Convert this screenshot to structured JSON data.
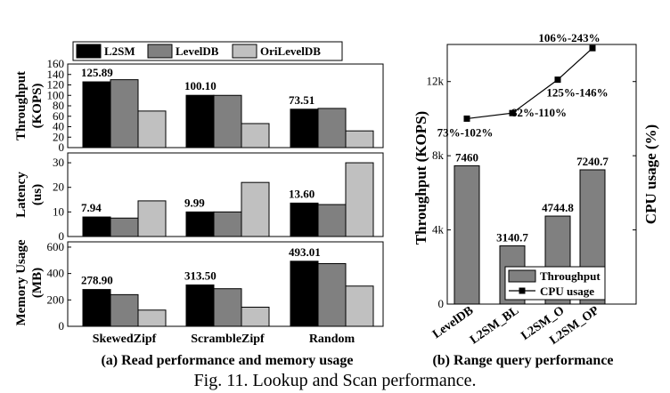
{
  "figure_caption": "Fig. 11.  Lookup and Scan performance.",
  "chart_data": [
    {
      "type": "bar",
      "panel": "throughput",
      "caption": "(a) Read performance and memory usage",
      "categories": [
        "SkewedZipf",
        "ScrambleZipf",
        "Random"
      ],
      "ylabel": [
        "Throughput",
        "(KOPS)"
      ],
      "ylim": [
        0,
        160
      ],
      "yticks": [
        0,
        20,
        40,
        60,
        80,
        100,
        120,
        140,
        160
      ],
      "series": [
        {
          "name": "L2SM",
          "color": "#000000",
          "values": [
            125.89,
            100.1,
            73.51
          ]
        },
        {
          "name": "LevelDB",
          "color": "#808080",
          "values": [
            130,
            100,
            75
          ]
        },
        {
          "name": "OriLevelDB",
          "color": "#c0c0c0",
          "values": [
            70,
            46,
            32
          ]
        }
      ],
      "value_labels": [
        "125.89",
        "100.10",
        "73.51"
      ],
      "legend": "top"
    },
    {
      "type": "bar",
      "panel": "latency",
      "categories": [
        "SkewedZipf",
        "ScrambleZipf",
        "Random"
      ],
      "ylabel": [
        "Latency",
        "(us)"
      ],
      "ylim": [
        0,
        34
      ],
      "yticks": [
        0,
        10,
        20,
        30
      ],
      "series": [
        {
          "name": "L2SM",
          "color": "#000000",
          "values": [
            7.94,
            9.99,
            13.6
          ]
        },
        {
          "name": "LevelDB",
          "color": "#808080",
          "values": [
            7.5,
            10,
            13
          ]
        },
        {
          "name": "OriLevelDB",
          "color": "#c0c0c0",
          "values": [
            14.5,
            22,
            30
          ]
        }
      ],
      "value_labels": [
        "7.94",
        "9.99",
        "13.60"
      ]
    },
    {
      "type": "bar",
      "panel": "memory",
      "categories": [
        "SkewedZipf",
        "ScrambleZipf",
        "Random"
      ],
      "ylabel": [
        "Memory Usage",
        "(MB)"
      ],
      "ylim": [
        0,
        640
      ],
      "yticks": [
        0,
        200,
        400,
        600
      ],
      "series": [
        {
          "name": "L2SM",
          "color": "#000000",
          "values": [
            278.9,
            313.5,
            493.01
          ]
        },
        {
          "name": "LevelDB",
          "color": "#808080",
          "values": [
            240,
            285,
            475
          ]
        },
        {
          "name": "OriLevelDB",
          "color": "#c0c0c0",
          "values": [
            123,
            145,
            305
          ]
        }
      ],
      "value_labels": [
        "278.90",
        "313.50",
        "493.01"
      ]
    },
    {
      "type": "bar+line",
      "panel": "range-query",
      "caption": "(b) Range query performance",
      "categories": [
        "LevelDB",
        "L2SM_BL",
        "L2SM_O",
        "L2SM_OP"
      ],
      "ylabel": "Throughput (KOPS)",
      "ylabel_right": "CPU usage (%)",
      "ylim": [
        0,
        14000
      ],
      "yticks": [
        0,
        4000,
        8000,
        12000
      ],
      "ytick_labels": [
        "0",
        "4k",
        "8k",
        "12k"
      ],
      "bar_series": {
        "name": "Throughput",
        "color": "#808080",
        "values": [
          7460,
          3140.7,
          4744.8,
          7240.7
        ]
      },
      "bar_labels": [
        "7460",
        "3140.7",
        "4744.8",
        "7240.7"
      ],
      "line_series": {
        "name": "CPU usage",
        "color": "#000000",
        "values": [
          10000,
          10300,
          12100,
          13800
        ]
      },
      "line_labels": [
        "73%-102%",
        "82%-110%",
        "125%-146%",
        "106%-243%"
      ],
      "legend": "bottom-right"
    }
  ]
}
